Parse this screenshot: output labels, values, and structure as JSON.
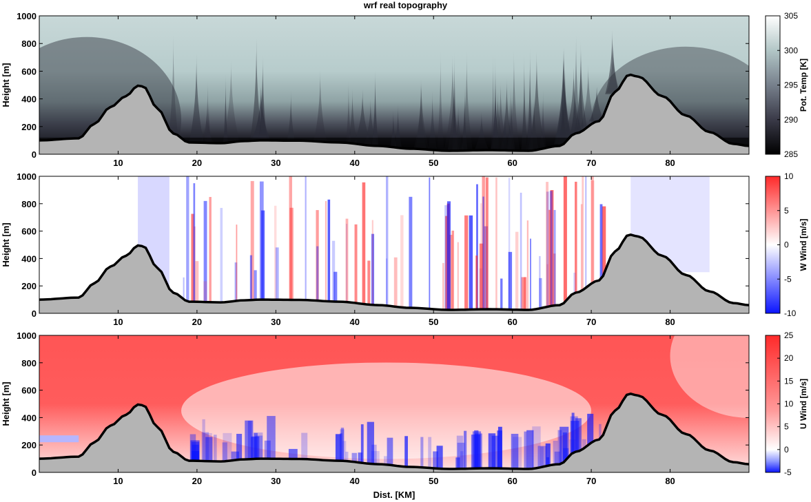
{
  "title": "wrf real topography",
  "xlabel": "Dist. [KM]",
  "colors": {
    "terrain_fill": "#b4b4b4",
    "terrain_line": "#000000",
    "red": "#ff2a2a",
    "blue": "#0a14ff",
    "theta_high": "#e8efef",
    "theta_mid": "#b7cccc",
    "theta_low": "#000000"
  },
  "chart_data": [
    {
      "type": "heatmap",
      "title": "",
      "ylabel": "Height [m]",
      "xlim": [
        0,
        90
      ],
      "ylim": [
        0,
        1000
      ],
      "xticks": [
        10,
        20,
        30,
        40,
        50,
        60,
        70,
        80
      ],
      "yticks": [
        0,
        200,
        400,
        600,
        800,
        1000
      ],
      "colorbar": {
        "label": "Pot. Temp [K]",
        "range": [
          285,
          305
        ],
        "ticks": [
          285,
          290,
          295,
          300,
          305
        ],
        "colormap": "bone"
      },
      "terrain_height_m": [
        [
          0,
          100
        ],
        [
          5,
          115
        ],
        [
          7,
          220
        ],
        [
          9,
          340
        ],
        [
          11,
          420
        ],
        [
          12.5,
          495
        ],
        [
          13.2,
          490
        ],
        [
          15,
          330
        ],
        [
          17,
          150
        ],
        [
          19,
          85
        ],
        [
          23,
          80
        ],
        [
          26,
          95
        ],
        [
          28,
          100
        ],
        [
          33,
          98
        ],
        [
          38,
          85
        ],
        [
          43,
          60
        ],
        [
          47,
          40
        ],
        [
          52,
          25
        ],
        [
          57,
          30
        ],
        [
          62,
          25
        ],
        [
          66,
          60
        ],
        [
          68,
          150
        ],
        [
          71,
          240
        ],
        [
          73,
          450
        ],
        [
          74.8,
          575
        ],
        [
          76,
          560
        ],
        [
          79,
          420
        ],
        [
          82,
          280
        ],
        [
          85,
          160
        ],
        [
          88,
          75
        ],
        [
          90,
          60
        ]
      ]
    },
    {
      "type": "heatmap",
      "title": "",
      "ylabel": "Height [m]",
      "xlim": [
        0,
        90
      ],
      "ylim": [
        0,
        1000
      ],
      "xticks": [
        10,
        20,
        30,
        40,
        50,
        60,
        70,
        80
      ],
      "yticks": [
        0,
        200,
        400,
        600,
        800,
        1000
      ],
      "colorbar": {
        "label": "W Wind [m/s]",
        "range": [
          -10,
          10
        ],
        "ticks": [
          -10,
          -5,
          0,
          5,
          10
        ],
        "colormap": "blue-white-red"
      },
      "terrain_height_m": "same as panel 1"
    },
    {
      "type": "heatmap",
      "title": "",
      "ylabel": "Height [m]",
      "xlabel": "Dist. [KM]",
      "xlim": [
        0,
        90
      ],
      "ylim": [
        0,
        1000
      ],
      "xticks": [
        10,
        20,
        30,
        40,
        50,
        60,
        70,
        80
      ],
      "yticks": [
        0,
        200,
        400,
        600,
        800,
        1000
      ],
      "colorbar": {
        "label": "U Wind [m/s]",
        "range": [
          -5,
          25
        ],
        "ticks": [
          -5,
          0,
          5,
          10,
          15,
          20,
          25
        ],
        "colormap": "blue-white-red"
      },
      "terrain_height_m": "same as panel 1"
    }
  ]
}
